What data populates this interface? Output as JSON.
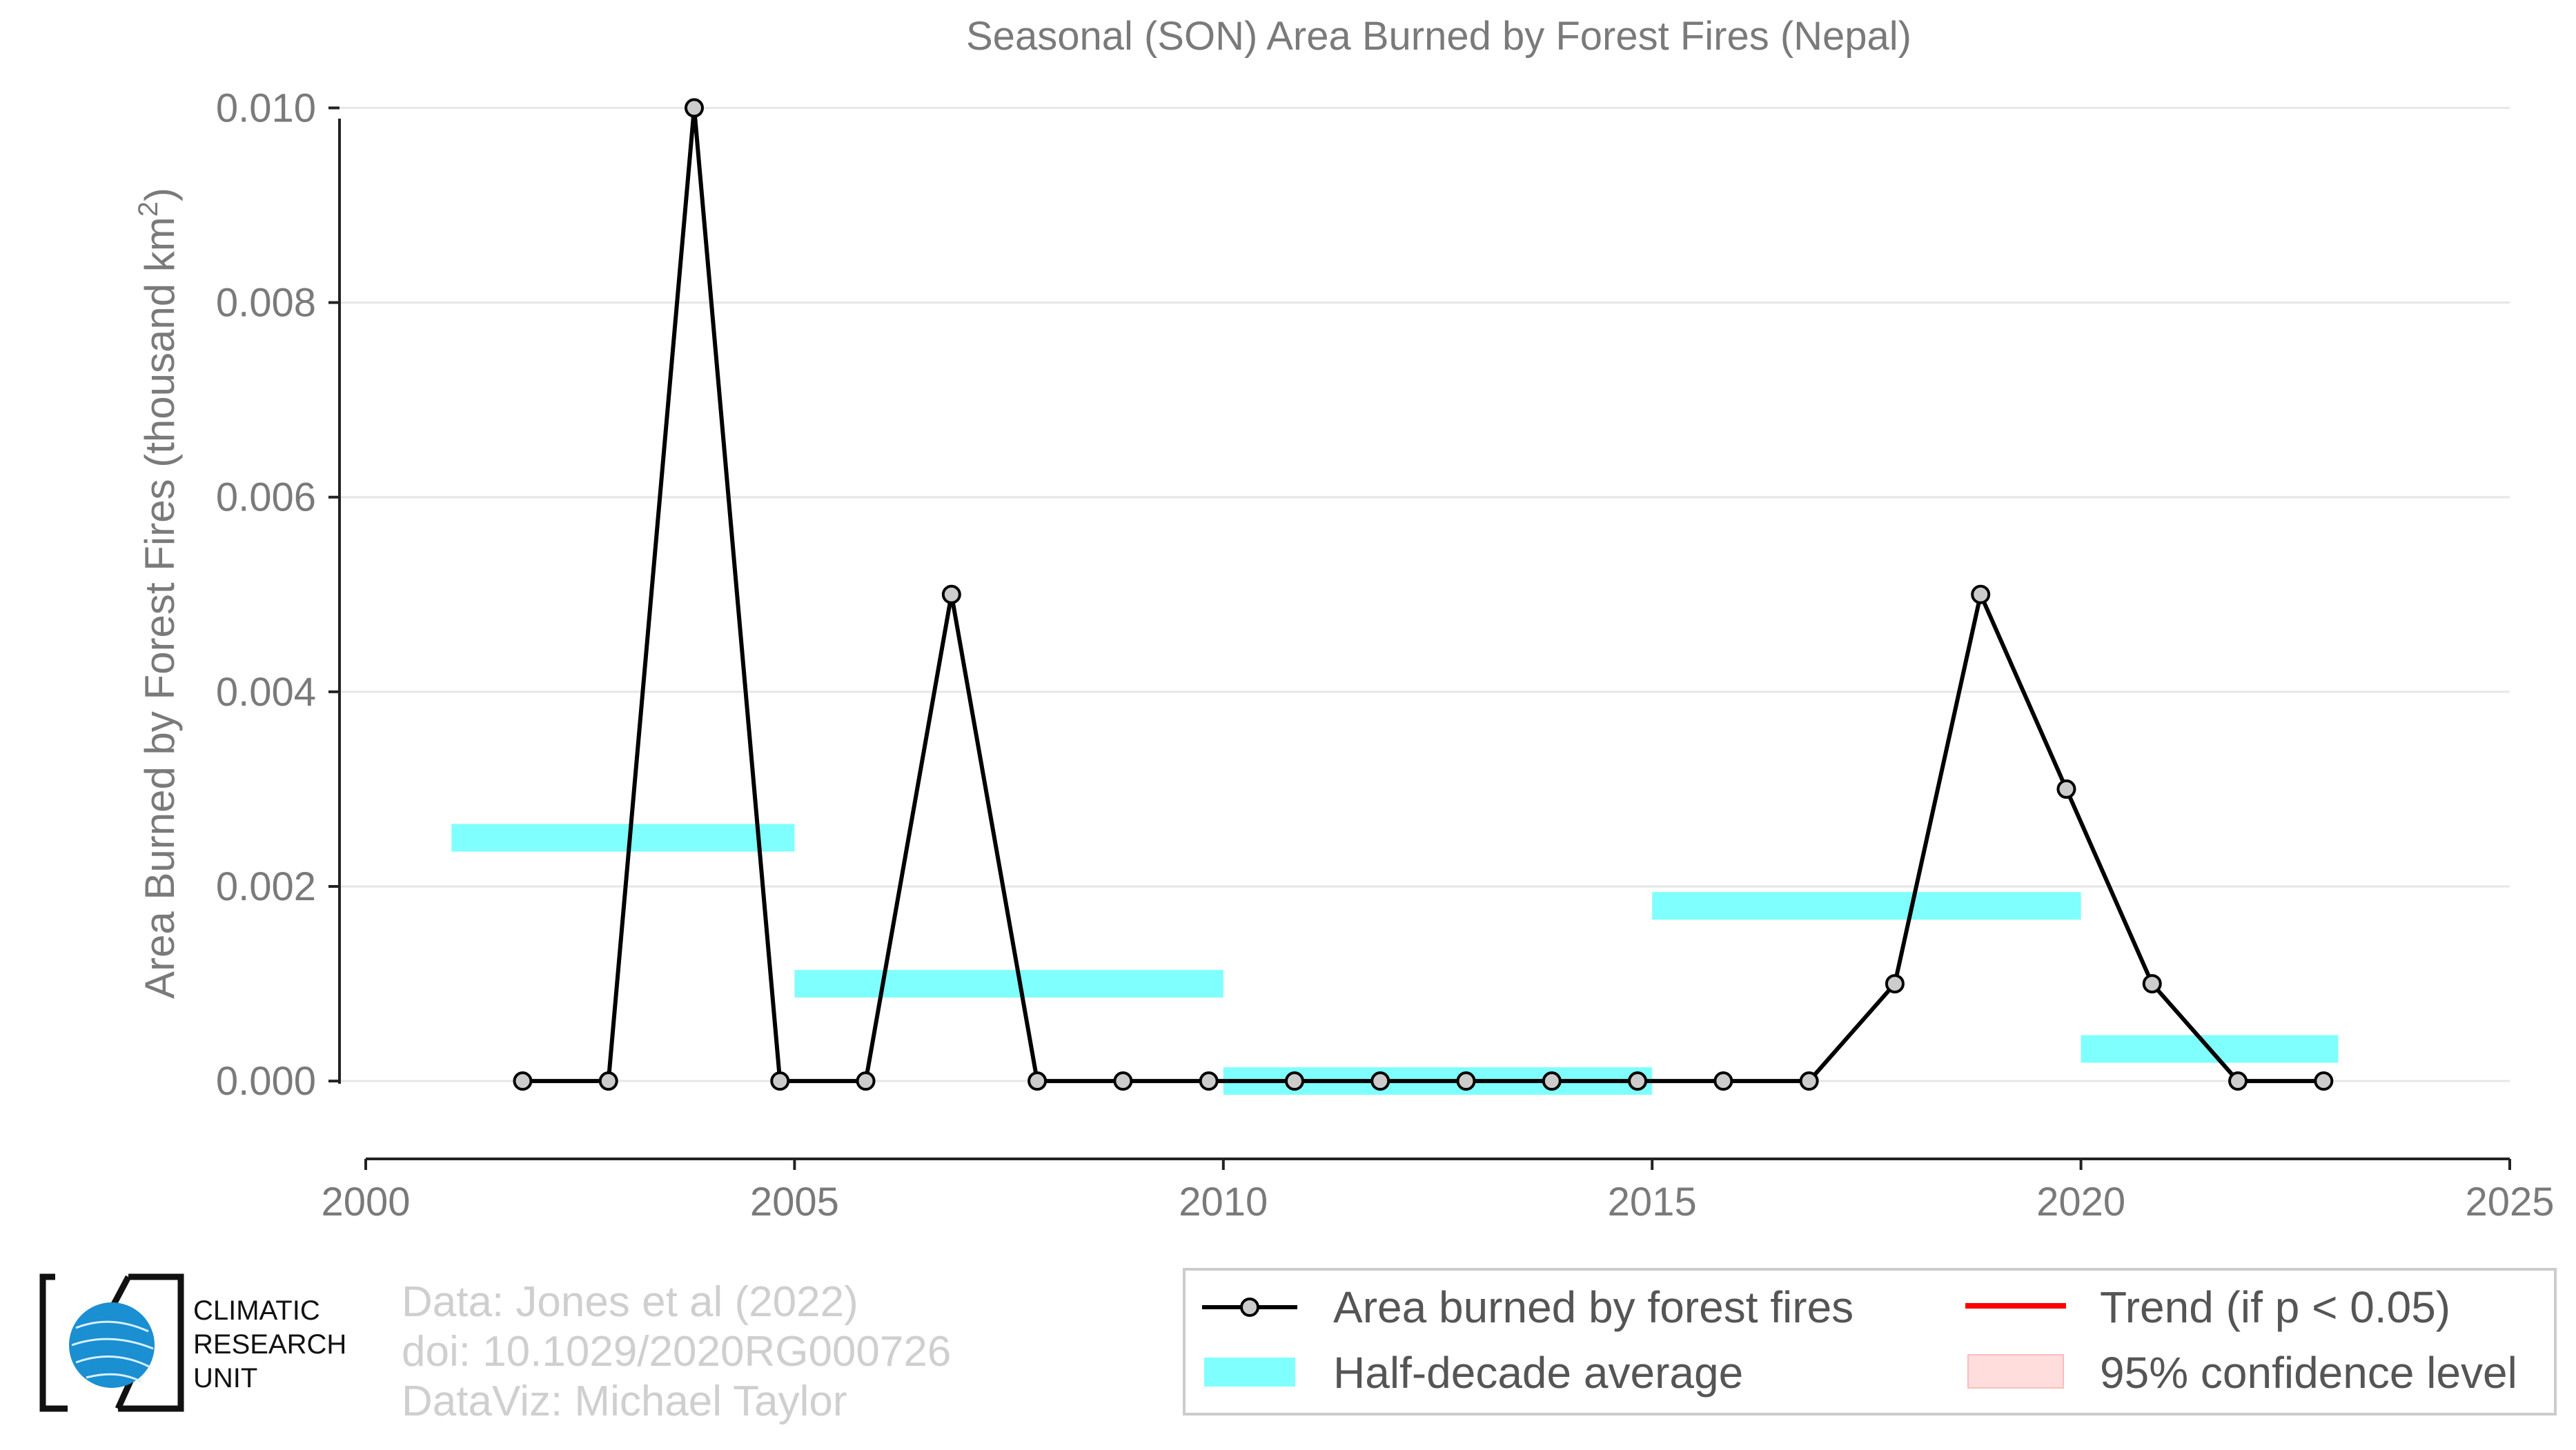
{
  "chart_data": {
    "type": "line",
    "title": "Seasonal (SON) Area Burned by Forest Fires (Nepal)",
    "ylabel": "Area Burned by Forest Fires (thousand km²)",
    "ylabel_main": "Area Burned by Forest Fires (thousand km",
    "ylabel_sup": "2",
    "ylabel_close": ")",
    "xlabel": "",
    "xlim": [
      2000,
      2025
    ],
    "ylim": [
      -0.0008,
      0.0104
    ],
    "xticks": [
      2000,
      2005,
      2010,
      2015,
      2020,
      2025
    ],
    "xtick_labels": [
      "2000",
      "2005",
      "2010",
      "2015",
      "2020",
      "2025"
    ],
    "yticks": [
      0,
      0.002,
      0.004,
      0.006,
      0.008,
      0.01
    ],
    "ytick_labels": [
      "0.000",
      "0.002",
      "0.004",
      "0.006",
      "0.008",
      "0.010"
    ],
    "grid": "horizontal",
    "series": [
      {
        "name": "Area burned by forest fires",
        "color": "#000000",
        "marker_fill": "#cccccc",
        "x": [
          2001.83,
          2002.83,
          2003.83,
          2004.83,
          2005.83,
          2006.83,
          2007.83,
          2008.83,
          2009.83,
          2010.83,
          2011.83,
          2012.83,
          2013.83,
          2014.83,
          2015.83,
          2016.83,
          2017.83,
          2018.83,
          2019.83,
          2020.83,
          2021.83,
          2022.83
        ],
        "values": [
          0,
          0,
          0.01,
          0,
          0,
          0.005,
          0,
          0,
          0,
          0,
          0,
          0,
          0,
          0,
          0,
          0,
          0.001,
          0.005,
          0.003,
          0.001,
          0,
          0
        ]
      }
    ],
    "half_decade_average": {
      "name": "Half-decade average",
      "color": "#80ffff",
      "segments": [
        {
          "x_start": 2001,
          "x_end": 2005,
          "value": 0.0025
        },
        {
          "x_start": 2005,
          "x_end": 2010,
          "value": 0.001
        },
        {
          "x_start": 2010,
          "x_end": 2015,
          "value": 0.0
        },
        {
          "x_start": 2015,
          "x_end": 2020,
          "value": 0.0018
        },
        {
          "x_start": 2020,
          "x_end": 2023,
          "value": 0.00033
        }
      ]
    },
    "legend": {
      "placement": "bottom-right",
      "items": [
        {
          "label": "Area burned by forest fires",
          "kind": "line-marker",
          "color": "#000000"
        },
        {
          "label": "Trend (if p < 0.05)",
          "kind": "line",
          "color": "#ff0000"
        },
        {
          "label": "Half-decade average",
          "kind": "band",
          "color": "#80ffff"
        },
        {
          "label": "95% confidence level",
          "kind": "band",
          "color": "#ffdddd"
        }
      ]
    }
  },
  "credits": {
    "line1": "Data: Jones et al (2022)",
    "line2": "doi: 10.1029/2020RG000726",
    "line3": "DataViz: Michael Taylor"
  },
  "logo": {
    "line1": "CLIMATIC",
    "line2": "RESEARCH",
    "line3": "UNIT",
    "globe_color": "#1a8fd1"
  }
}
